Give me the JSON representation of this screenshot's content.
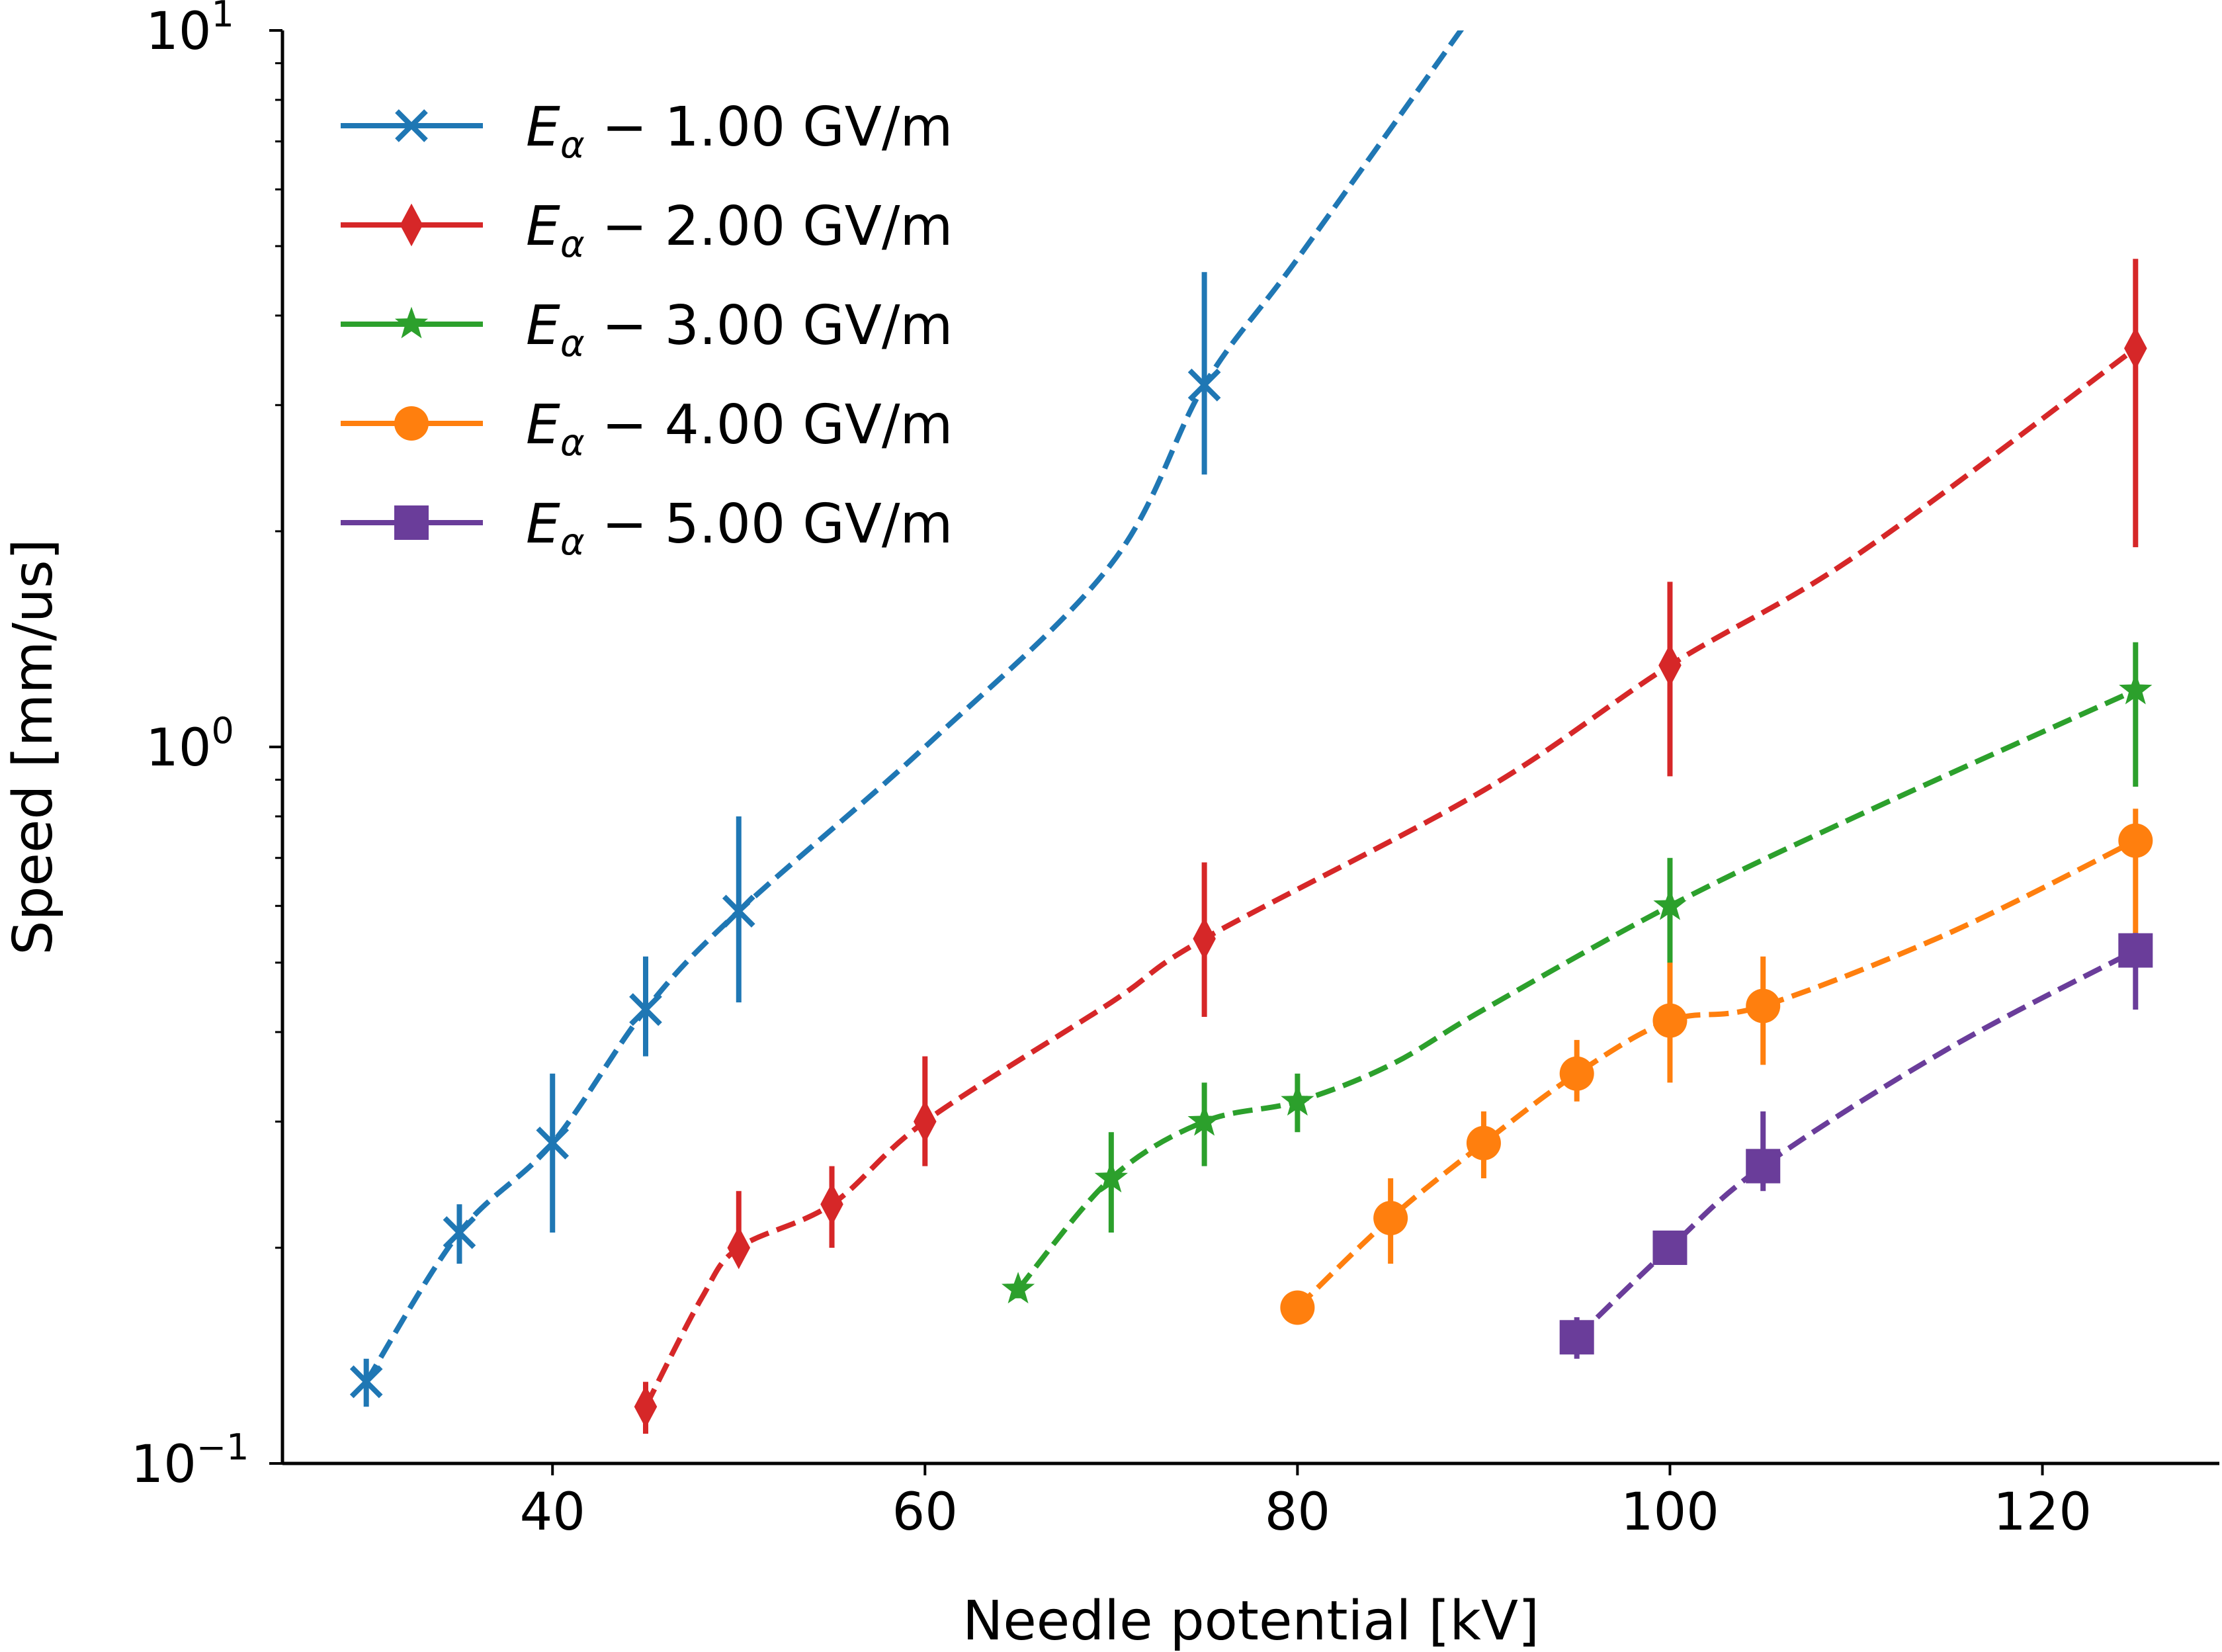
{
  "chart_data": {
    "type": "line",
    "title": "",
    "xlabel": "Needle potential [kV]",
    "ylabel": "Speed [mm/us]",
    "xscale": "linear",
    "yscale": "log",
    "xlim": [
      25.5,
      129.5
    ],
    "ylim": [
      0.1,
      10
    ],
    "xticks": [
      40,
      60,
      80,
      100,
      120
    ],
    "xtick_labels": [
      "40",
      "60",
      "80",
      "100",
      "120"
    ],
    "yticks": [
      {
        "base": "10",
        "exp": "−1",
        "value": 0.1
      },
      {
        "base": "10",
        "exp": "0",
        "value": 1
      },
      {
        "base": "10",
        "exp": "1",
        "value": 10
      }
    ],
    "grid": false,
    "legend_position": "upper-left",
    "legend_prefix": "E",
    "legend_subscript": "α",
    "series": [
      {
        "name": "1.00 GV/m",
        "color": "#1f77b4",
        "marker": "x",
        "x": [
          30,
          35,
          40,
          45,
          50,
          75
        ],
        "y": [
          0.13,
          0.21,
          0.28,
          0.43,
          0.59,
          3.2
        ],
        "err_low": [
          0.12,
          0.19,
          0.21,
          0.37,
          0.44,
          2.4
        ],
        "err_high": [
          0.14,
          0.23,
          0.35,
          0.51,
          0.8,
          4.6
        ],
        "fit_x": [
          30,
          35,
          40,
          45,
          50,
          60,
          70,
          75,
          80,
          89
        ],
        "fit_y": [
          0.13,
          0.21,
          0.28,
          0.43,
          0.59,
          1.0,
          1.8,
          3.2,
          4.8,
          10.2
        ]
      },
      {
        "name": "2.00 GV/m",
        "color": "#d62728",
        "marker": "diamond",
        "x": [
          45,
          50,
          55,
          60,
          75,
          100,
          125
        ],
        "y": [
          0.12,
          0.2,
          0.23,
          0.3,
          0.54,
          1.3,
          3.6
        ],
        "err_low": [
          0.11,
          0.19,
          0.2,
          0.26,
          0.42,
          0.91,
          1.9
        ],
        "err_high": [
          0.13,
          0.24,
          0.26,
          0.37,
          0.69,
          1.7,
          4.8
        ],
        "fit_x": [
          45,
          48,
          50,
          55,
          60,
          70,
          75,
          90,
          100,
          110,
          125
        ],
        "fit_y": [
          0.12,
          0.17,
          0.2,
          0.23,
          0.3,
          0.44,
          0.54,
          0.87,
          1.3,
          1.85,
          3.6
        ]
      },
      {
        "name": "3.00 GV/m",
        "color": "#2ca02c",
        "marker": "star",
        "x": [
          65,
          70,
          75,
          80,
          100,
          125
        ],
        "y": [
          0.175,
          0.25,
          0.3,
          0.32,
          0.6,
          1.2
        ],
        "err_low": [
          0.17,
          0.21,
          0.26,
          0.29,
          0.42,
          0.88
        ],
        "err_high": [
          0.18,
          0.29,
          0.34,
          0.35,
          0.7,
          1.4
        ],
        "fit_x": [
          65,
          70,
          75,
          80,
          85,
          90,
          100,
          110,
          125
        ],
        "fit_y": [
          0.175,
          0.25,
          0.3,
          0.32,
          0.36,
          0.43,
          0.6,
          0.8,
          1.2
        ]
      },
      {
        "name": "4.00 GV/m",
        "color": "#ff7f0e",
        "marker": "circle",
        "x": [
          80,
          85,
          90,
          95,
          100,
          105,
          125
        ],
        "y": [
          0.165,
          0.22,
          0.28,
          0.35,
          0.415,
          0.435,
          0.74
        ],
        "err_low": [
          0.16,
          0.19,
          0.25,
          0.32,
          0.34,
          0.36,
          0.55
        ],
        "err_high": [
          0.17,
          0.25,
          0.31,
          0.39,
          0.5,
          0.51,
          0.82
        ],
        "fit_x": [
          80,
          85,
          90,
          95,
          100,
          105,
          115,
          125
        ],
        "fit_y": [
          0.165,
          0.22,
          0.28,
          0.35,
          0.415,
          0.435,
          0.55,
          0.74
        ]
      },
      {
        "name": "5.00 GV/m",
        "color": "#6a3d9a",
        "marker": "square",
        "x": [
          95,
          100,
          105,
          125
        ],
        "y": [
          0.15,
          0.2,
          0.26,
          0.52
        ],
        "err_low": [
          0.14,
          0.19,
          0.24,
          0.43
        ],
        "err_high": [
          0.16,
          0.21,
          0.31,
          0.55
        ],
        "fit_x": [
          95,
          100,
          105,
          115,
          125
        ],
        "fit_y": [
          0.15,
          0.2,
          0.26,
          0.38,
          0.52
        ]
      }
    ]
  }
}
